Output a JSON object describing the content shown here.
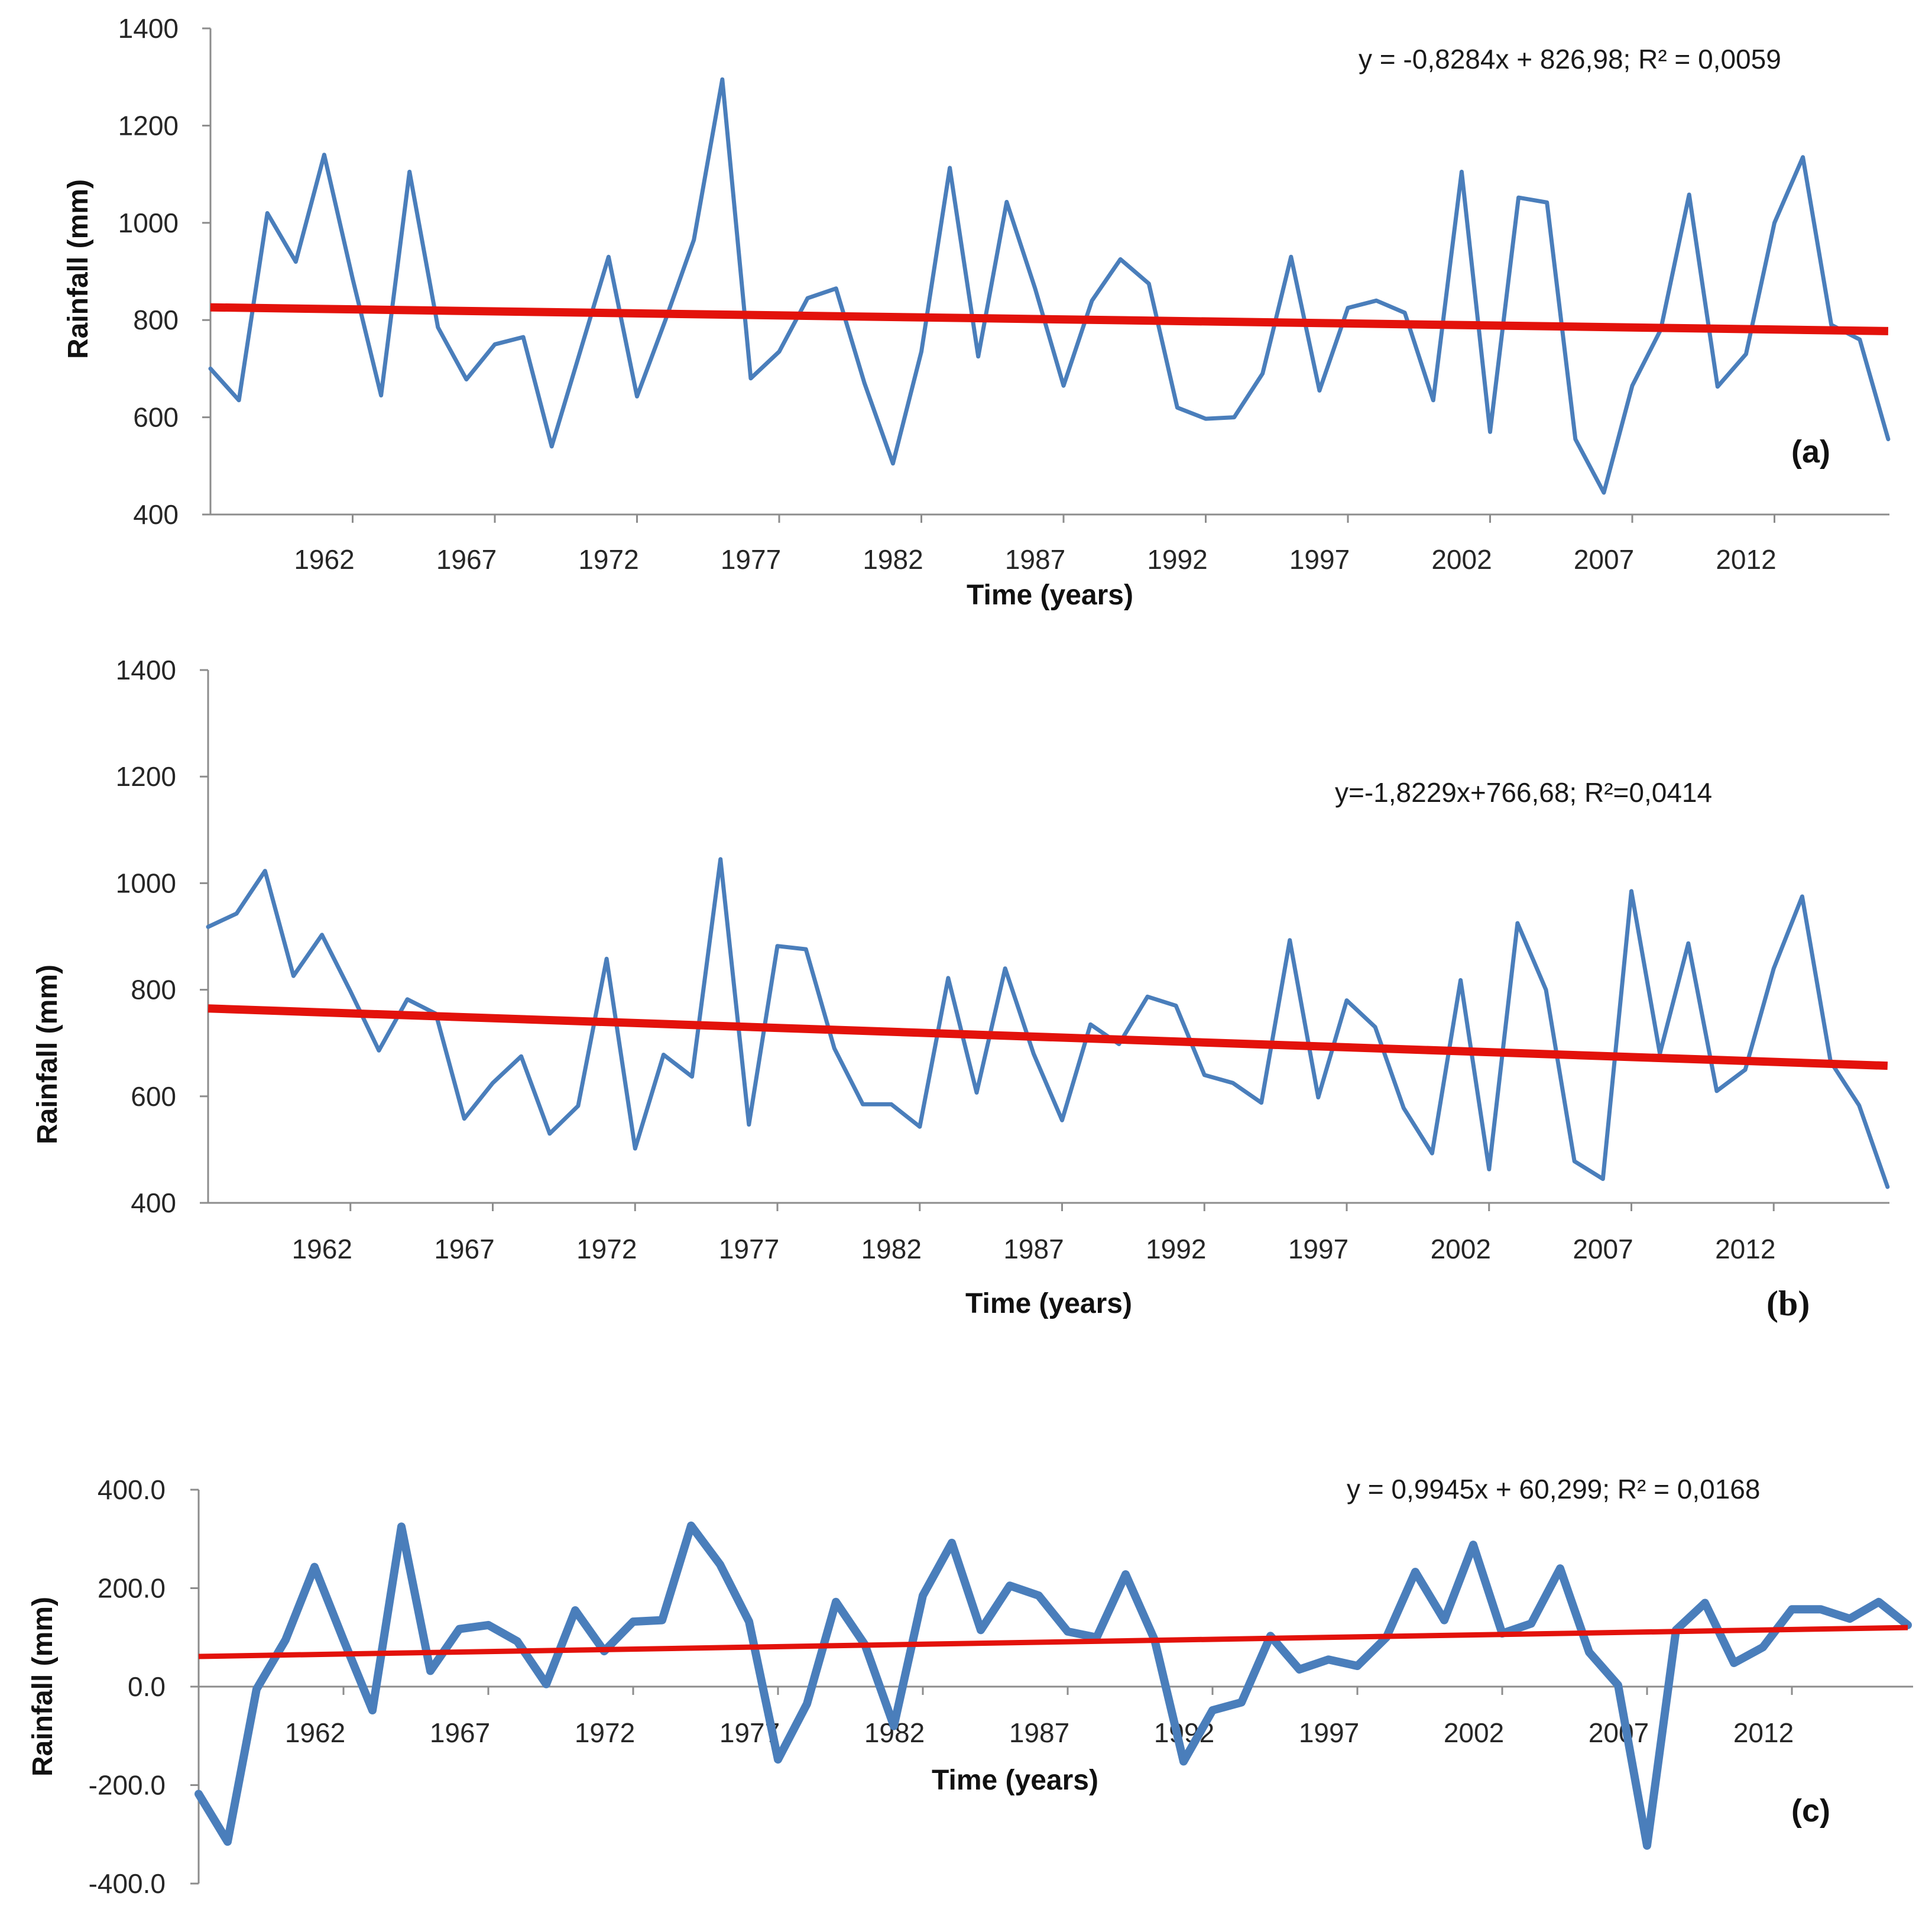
{
  "colors": {
    "series": "#4a7ebb",
    "trend": "#e3120b",
    "axis": "#8c8c8c",
    "text": "#262626"
  },
  "chart_data": [
    {
      "type": "line",
      "panel": "(a)",
      "title": "",
      "xlabel": "Time (years)",
      "ylabel": "Rainfall (mm)",
      "equation": "y = -0,8284x + 826,98; R² = 0,0059",
      "xlim": [
        1957,
        2016
      ],
      "ylim": [
        400,
        1400
      ],
      "yticks": [
        400,
        600,
        800,
        1000,
        1200,
        1400
      ],
      "ytick_labels": [
        "400",
        "600",
        "800",
        "1000",
        "1200",
        "1400"
      ],
      "xticks": [
        1962,
        1967,
        1972,
        1977,
        1982,
        1987,
        1992,
        1997,
        2002,
        2007,
        2012
      ],
      "xtick_labels": [
        "1962",
        "1967",
        "1972",
        "1977",
        "1982",
        "1987",
        "1992",
        "1997",
        "2002",
        "2007",
        "2012"
      ],
      "x": [
        1957,
        1958,
        1959,
        1960,
        1961,
        1962,
        1963,
        1964,
        1965,
        1966,
        1967,
        1968,
        1969,
        1970,
        1971,
        1972,
        1973,
        1974,
        1975,
        1976,
        1977,
        1978,
        1979,
        1980,
        1981,
        1982,
        1983,
        1984,
        1985,
        1986,
        1987,
        1988,
        1989,
        1990,
        1991,
        1992,
        1993,
        1994,
        1995,
        1996,
        1997,
        1998,
        1999,
        2000,
        2001,
        2002,
        2003,
        2004,
        2005,
        2006,
        2007,
        2008,
        2009,
        2010,
        2011,
        2012,
        2013,
        2014,
        2015,
        2016
      ],
      "series": [
        {
          "name": "Rainfall",
          "values": [
            700,
            635,
            1020,
            920,
            1140,
            885,
            645,
            1105,
            785,
            678,
            750,
            765,
            540,
            735,
            930,
            643,
            800,
            965,
            1295,
            680,
            735,
            845,
            865,
            670,
            505,
            735,
            1113,
            725,
            1043,
            865,
            665,
            840,
            925,
            875,
            620,
            597,
            600,
            690,
            930,
            655,
            825,
            840,
            815,
            635,
            1105,
            570,
            1052,
            1042,
            555,
            445,
            665,
            780,
            1058,
            663,
            730,
            1000,
            1135,
            790,
            760,
            555
          ]
        }
      ],
      "trend": {
        "name": "Linear trend",
        "slope": -0.8284,
        "intercept": 826.98
      }
    },
    {
      "type": "line",
      "panel": "(b)",
      "title": "",
      "xlabel": "Time (years)",
      "ylabel": "Rainfall (mm)",
      "equation": "y=-1,8229x+766,68; R²=0,0414",
      "xlim": [
        1957,
        2016
      ],
      "ylim": [
        400,
        1400
      ],
      "yticks": [
        400,
        600,
        800,
        1000,
        1200,
        1400
      ],
      "ytick_labels": [
        "400",
        "600",
        "800",
        "1000",
        "1200",
        "1400"
      ],
      "xticks": [
        1962,
        1967,
        1972,
        1977,
        1982,
        1987,
        1992,
        1997,
        2002,
        2007,
        2012
      ],
      "xtick_labels": [
        "1962",
        "1967",
        "1972",
        "1977",
        "1982",
        "1987",
        "1992",
        "1997",
        "2002",
        "2007",
        "2012"
      ],
      "x": [
        1957,
        1958,
        1959,
        1960,
        1961,
        1962,
        1963,
        1964,
        1965,
        1966,
        1967,
        1968,
        1969,
        1970,
        1971,
        1972,
        1973,
        1974,
        1975,
        1976,
        1977,
        1978,
        1979,
        1980,
        1981,
        1982,
        1983,
        1984,
        1985,
        1986,
        1987,
        1988,
        1989,
        1990,
        1991,
        1992,
        1993,
        1994,
        1995,
        1996,
        1997,
        1998,
        1999,
        2000,
        2001,
        2002,
        2003,
        2004,
        2005,
        2006,
        2007,
        2008,
        2009,
        2010,
        2011,
        2012,
        2013,
        2014,
        2015,
        2016
      ],
      "series": [
        {
          "name": "Rainfall",
          "values": [
            918,
            943,
            1023,
            826,
            903,
            797,
            686,
            782,
            755,
            558,
            625,
            675,
            530,
            582,
            858,
            502,
            678,
            637,
            1045,
            547,
            882,
            876,
            690,
            585,
            585,
            543,
            822,
            607,
            840,
            680,
            555,
            735,
            698,
            787,
            770,
            640,
            625,
            588,
            893,
            598,
            780,
            730,
            578,
            493,
            818,
            463,
            925,
            800,
            478,
            445,
            985,
            680,
            887,
            610,
            650,
            840,
            975,
            665,
            583,
            430
          ]
        }
      ],
      "trend": {
        "name": "Linear trend",
        "slope": -1.8229,
        "intercept": 766.68
      }
    },
    {
      "type": "line",
      "panel": "(c)",
      "title": "",
      "xlabel": "Time (years)",
      "ylabel": "Rainfall (mm)",
      "equation": "y = 0,9945x + 60,299; R² = 0,0168",
      "xlim": [
        1957,
        2016
      ],
      "ylim": [
        -400,
        400
      ],
      "yticks": [
        -400,
        -200,
        0,
        200,
        400
      ],
      "ytick_labels": [
        "-400.0",
        "-200.0",
        "0.0",
        "200.0",
        "400.0"
      ],
      "xticks": [
        1962,
        1967,
        1972,
        1977,
        1982,
        1987,
        1992,
        1997,
        2002,
        2007,
        2012
      ],
      "xtick_labels": [
        "1962",
        "1967",
        "1972",
        "1977",
        "1982",
        "1987",
        "1992",
        "1997",
        "2002",
        "2007",
        "2012"
      ],
      "x": [
        1957,
        1958,
        1959,
        1960,
        1961,
        1962,
        1963,
        1964,
        1965,
        1966,
        1967,
        1968,
        1969,
        1970,
        1971,
        1972,
        1973,
        1974,
        1975,
        1976,
        1977,
        1978,
        1979,
        1980,
        1981,
        1982,
        1983,
        1984,
        1985,
        1986,
        1987,
        1988,
        1989,
        1990,
        1991,
        1992,
        1993,
        1994,
        1995,
        1996,
        1997,
        1998,
        1999,
        2000,
        2001,
        2002,
        2003,
        2004,
        2005,
        2006,
        2007,
        2008,
        2009,
        2010,
        2011,
        2012,
        2013,
        2014,
        2015,
        2016
      ],
      "series": [
        {
          "name": "Rainfall",
          "values": [
            -218,
            -315,
            -5,
            95,
            243,
            95,
            -48,
            325,
            32,
            117,
            125,
            92,
            5,
            155,
            72,
            132,
            135,
            327,
            248,
            132,
            -148,
            -35,
            172,
            85,
            -80,
            185,
            292,
            115,
            205,
            185,
            112,
            100,
            228,
            95,
            -152,
            -48,
            -32,
            103,
            35,
            55,
            42,
            100,
            233,
            135,
            288,
            108,
            128,
            240,
            70,
            3,
            -323,
            115,
            170,
            48,
            80,
            157,
            157,
            138,
            172,
            125
          ]
        }
      ],
      "trend": {
        "name": "Linear trend",
        "slope": 0.9945,
        "intercept": 60.299
      }
    }
  ]
}
